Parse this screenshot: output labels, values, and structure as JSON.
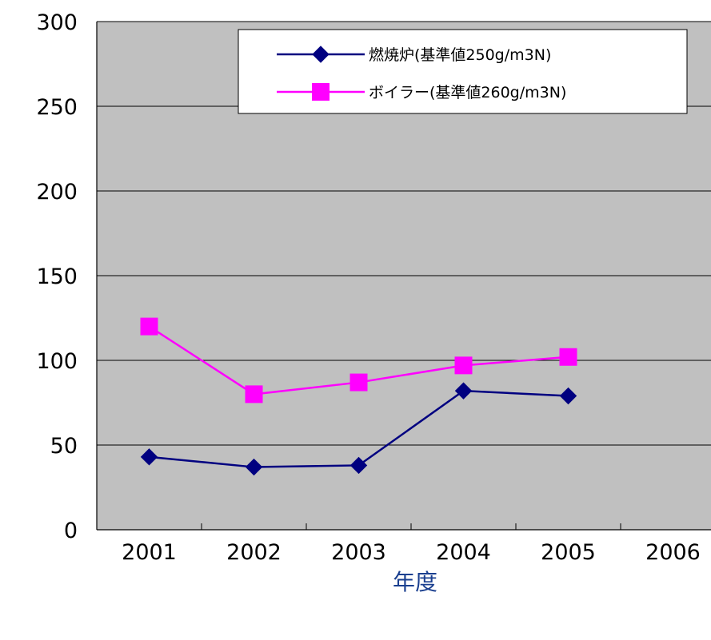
{
  "chart_data": {
    "type": "line",
    "title": "",
    "xlabel": "年度",
    "ylabel": "",
    "categories": [
      "2001",
      "2002",
      "2003",
      "2004",
      "2005",
      "2006"
    ],
    "ylim": [
      0,
      300
    ],
    "yticks": [
      "0",
      "50",
      "100",
      "150",
      "200",
      "250",
      "300"
    ],
    "grid": "horizontal",
    "legend_position": "top-right",
    "plot_background": "#c0c0c0",
    "series": [
      {
        "name": "燃焼炉(基準値250g/m3N)",
        "color": "#000080",
        "marker": "diamond",
        "values": [
          43,
          37,
          38,
          82,
          79,
          null
        ]
      },
      {
        "name": "ボイラー(基準値260g/m3N)",
        "color": "#ff00ff",
        "marker": "square",
        "values": [
          120,
          80,
          87,
          97,
          102,
          null
        ]
      }
    ]
  }
}
